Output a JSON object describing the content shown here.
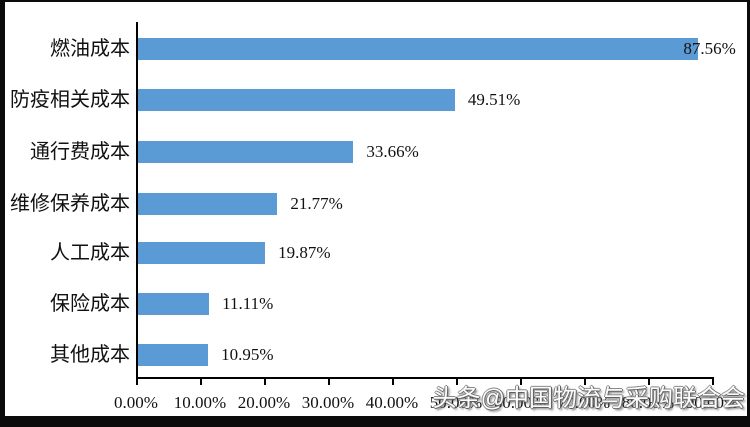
{
  "chart_data": {
    "type": "bar",
    "orientation": "horizontal",
    "title": "",
    "xlabel": "",
    "ylabel": "",
    "categories": [
      "燃油成本",
      "防疫相关成本",
      "通行费成本",
      "维修保养成本",
      "人工成本",
      "保险成本",
      "其他成本"
    ],
    "values": [
      87.56,
      49.51,
      33.66,
      21.77,
      19.87,
      11.11,
      10.95
    ],
    "value_labels": [
      "87.56%",
      "49.51%",
      "33.66%",
      "21.77%",
      "19.87%",
      "11.11%",
      "10.95%"
    ],
    "x_ticks": [
      "0.00%",
      "10.00%",
      "20.00%",
      "30.00%",
      "40.00%",
      "50.00%",
      "60.00%",
      "70.00%",
      "80.00%",
      "90.00%"
    ],
    "xlim": [
      0,
      90
    ],
    "grid": false,
    "legend_position": "none",
    "bar_color": "#5B9BD5",
    "axis_color": "#000000",
    "label_color": "#111111"
  },
  "watermark": {
    "text": "头条@中国物流与采购联合会"
  },
  "frame": {
    "color": "#0b0b0b"
  }
}
